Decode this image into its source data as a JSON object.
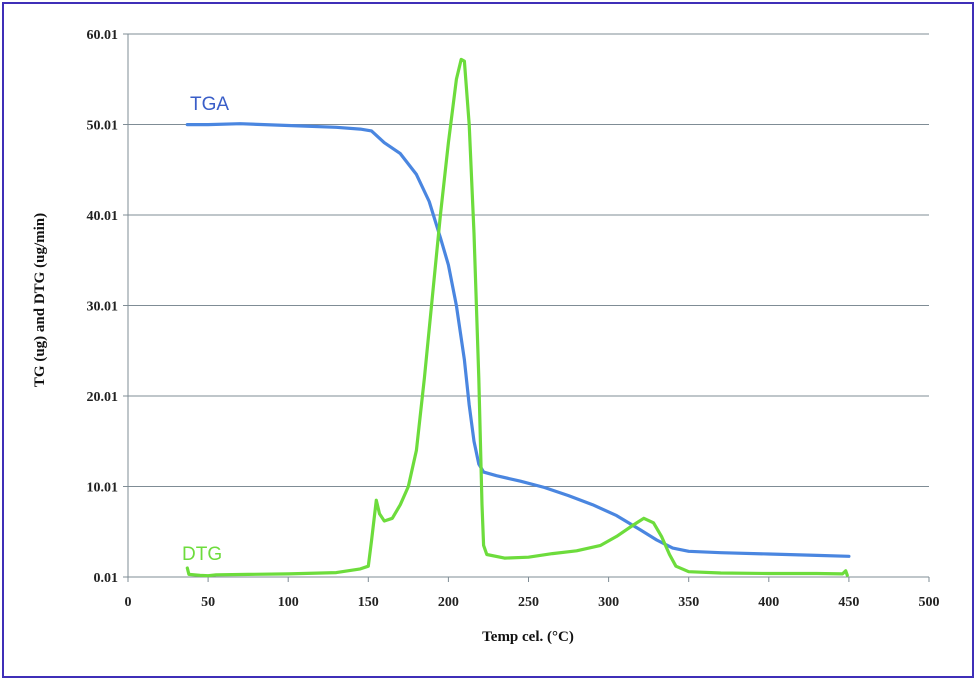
{
  "chart_data": {
    "type": "line",
    "xlabel": "Temp  cel. (°C)",
    "ylabel": "TG  (ug) and DTG  (ug/min)",
    "xlim": [
      0,
      500
    ],
    "ylim": [
      0.01,
      60.01
    ],
    "xticks": [
      0,
      50,
      100,
      150,
      200,
      250,
      300,
      350,
      400,
      450,
      500
    ],
    "yticks": [
      0.01,
      10.01,
      20.01,
      30.01,
      40.01,
      50.01,
      60.01
    ],
    "xtick_labels": [
      "0",
      "50",
      "100",
      "150",
      "200",
      "250",
      "300",
      "350",
      "400",
      "450",
      "500"
    ],
    "ytick_labels": [
      "0.01",
      "10.01",
      "20.01",
      "30.01",
      "40.01",
      "50.01",
      "60.01"
    ],
    "grid": "horizontal",
    "series": [
      {
        "name": "TGA",
        "color": "#4a86e0",
        "points": [
          [
            37,
            50.0
          ],
          [
            50,
            50.0
          ],
          [
            70,
            50.1
          ],
          [
            100,
            49.9
          ],
          [
            130,
            49.7
          ],
          [
            145,
            49.5
          ],
          [
            152,
            49.3
          ],
          [
            160,
            48.0
          ],
          [
            170,
            46.8
          ],
          [
            180,
            44.5
          ],
          [
            188,
            41.5
          ],
          [
            195,
            37.5
          ],
          [
            200,
            34.5
          ],
          [
            205,
            30.0
          ],
          [
            210,
            24.0
          ],
          [
            213,
            19.0
          ],
          [
            216,
            15.0
          ],
          [
            219,
            12.5
          ],
          [
            222,
            11.6
          ],
          [
            230,
            11.2
          ],
          [
            245,
            10.6
          ],
          [
            260,
            9.9
          ],
          [
            275,
            9.0
          ],
          [
            290,
            8.0
          ],
          [
            305,
            6.8
          ],
          [
            320,
            5.2
          ],
          [
            330,
            4.1
          ],
          [
            340,
            3.2
          ],
          [
            350,
            2.85
          ],
          [
            370,
            2.7
          ],
          [
            400,
            2.55
          ],
          [
            430,
            2.4
          ],
          [
            450,
            2.3
          ]
        ]
      },
      {
        "name": "DTG",
        "color": "#6ddc3c",
        "points": [
          [
            37,
            1.0
          ],
          [
            38,
            0.3
          ],
          [
            45,
            0.2
          ],
          [
            50,
            0.15
          ],
          [
            55,
            0.25
          ],
          [
            75,
            0.3
          ],
          [
            100,
            0.35
          ],
          [
            130,
            0.5
          ],
          [
            145,
            0.9
          ],
          [
            150,
            1.2
          ],
          [
            152,
            4.0
          ],
          [
            155,
            8.5
          ],
          [
            157,
            7.0
          ],
          [
            160,
            6.2
          ],
          [
            165,
            6.5
          ],
          [
            170,
            8.0
          ],
          [
            175,
            10.0
          ],
          [
            180,
            14.0
          ],
          [
            185,
            22.0
          ],
          [
            190,
            31.0
          ],
          [
            195,
            40.0
          ],
          [
            200,
            48.0
          ],
          [
            205,
            55.0
          ],
          [
            208,
            57.2
          ],
          [
            210,
            57.0
          ],
          [
            213,
            50.0
          ],
          [
            216,
            38.0
          ],
          [
            219,
            22.0
          ],
          [
            221,
            8.0
          ],
          [
            222,
            3.5
          ],
          [
            224,
            2.5
          ],
          [
            235,
            2.1
          ],
          [
            250,
            2.2
          ],
          [
            265,
            2.6
          ],
          [
            280,
            2.9
          ],
          [
            295,
            3.5
          ],
          [
            305,
            4.5
          ],
          [
            315,
            5.7
          ],
          [
            322,
            6.5
          ],
          [
            328,
            6.0
          ],
          [
            333,
            4.5
          ],
          [
            338,
            2.5
          ],
          [
            342,
            1.2
          ],
          [
            350,
            0.6
          ],
          [
            370,
            0.45
          ],
          [
            400,
            0.4
          ],
          [
            430,
            0.4
          ],
          [
            446,
            0.35
          ],
          [
            448,
            0.7
          ],
          [
            449,
            0.2
          ]
        ]
      }
    ]
  }
}
